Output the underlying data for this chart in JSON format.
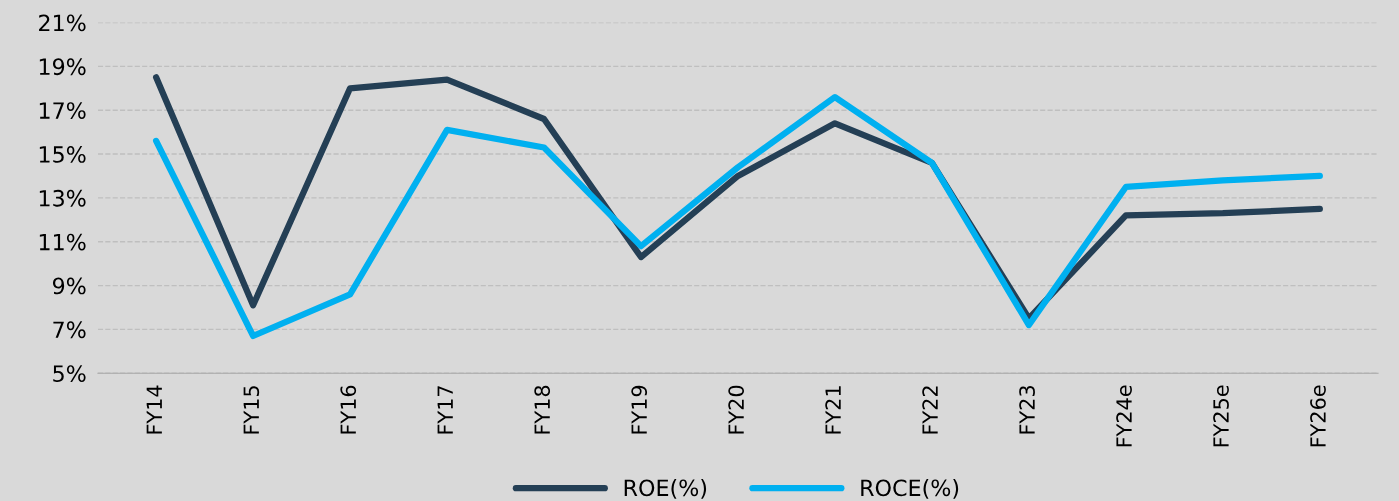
{
  "chart_data": {
    "type": "line",
    "categories": [
      "FY14",
      "FY15",
      "FY16",
      "FY17",
      "FY18",
      "FY19",
      "FY20",
      "FY21",
      "FY22",
      "FY23",
      "FY24e",
      "FY25e",
      "FY26e"
    ],
    "series": [
      {
        "name": "ROE(%)",
        "color": "#243f55",
        "values": [
          18.5,
          8.1,
          18.0,
          18.4,
          16.6,
          10.3,
          14.0,
          16.4,
          14.6,
          7.5,
          12.2,
          12.3,
          12.5
        ]
      },
      {
        "name": "ROCE(%)",
        "color": "#00b0f0",
        "values": [
          15.6,
          6.7,
          8.6,
          16.1,
          15.3,
          10.8,
          14.4,
          17.6,
          14.6,
          7.2,
          13.5,
          13.8,
          14.0
        ]
      }
    ],
    "ylim": [
      5,
      21
    ],
    "yticks": [
      {
        "value": 5,
        "label": "5%"
      },
      {
        "value": 7,
        "label": "7%"
      },
      {
        "value": 9,
        "label": "9%"
      },
      {
        "value": 11,
        "label": "11%"
      },
      {
        "value": 13,
        "label": "13%"
      },
      {
        "value": 15,
        "label": "15%"
      },
      {
        "value": 17,
        "label": "17%"
      },
      {
        "value": 19,
        "label": "19%"
      },
      {
        "value": 21,
        "label": "21%"
      }
    ],
    "grid": "y",
    "legend": "bottom",
    "marker": "none",
    "line_style": "solid"
  }
}
